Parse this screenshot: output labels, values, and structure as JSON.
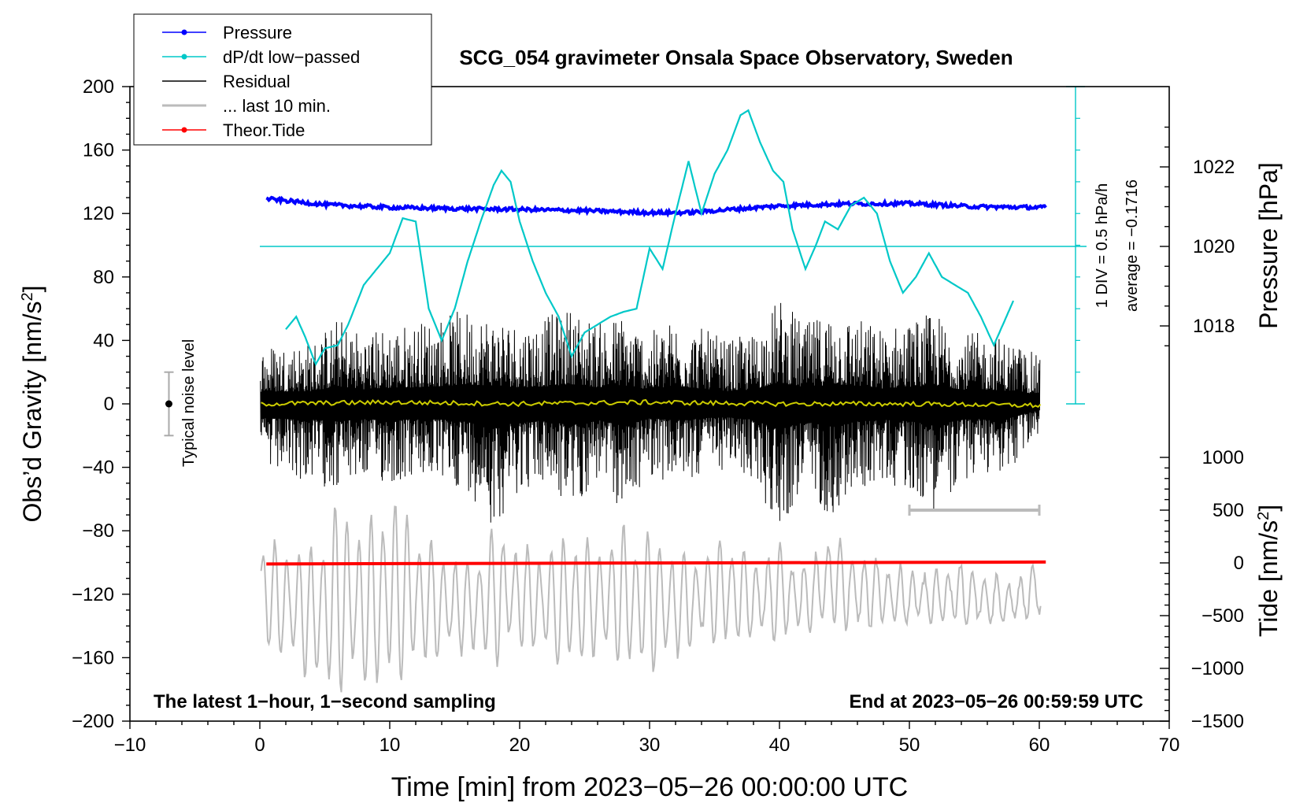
{
  "chart_data": {
    "type": "line",
    "title": "SCG_054 gravimeter Onsala Space Observatory, Sweden",
    "xlabel": "Time [min] from 2023−05−26 00:00:00 UTC",
    "xlim": [
      -10,
      70
    ],
    "x_ticks": [
      "−10",
      "0",
      "10",
      "20",
      "30",
      "40",
      "50",
      "60",
      "70"
    ],
    "y_left": {
      "label_main": "Obs’d Gravity [nm/s",
      "label_sup": "2",
      "label_end": "]",
      "ylim": [
        -200,
        200
      ],
      "ticks": [
        "−200",
        "−160",
        "−120",
        "−80",
        "−40",
        "0",
        "40",
        "80",
        "120",
        "160",
        "200"
      ]
    },
    "y_right_pressure": {
      "label": "Pressure [hPa]",
      "ticks": [
        "1018",
        "1020",
        "1022"
      ],
      "tick_values": [
        1018,
        1020,
        1022
      ]
    },
    "y_right_tide": {
      "label_main": "Tide [nm/s",
      "label_sup": "2",
      "label_end": "]",
      "ylim": [
        -1500,
        1000
      ],
      "ticks": [
        "−1500",
        "−1000",
        "−500",
        "0",
        "500",
        "1000"
      ],
      "tick_values": [
        -1500,
        -1000,
        -500,
        0,
        500,
        1000
      ]
    },
    "dpdt_scale": {
      "div_label": "1 DIV = 0.5 hPa/h",
      "average_label": "average = −0.1716"
    },
    "noise_label": "Typical noise level",
    "noise_level": {
      "center": 0,
      "range": [
        -20,
        20
      ],
      "x": -7
    },
    "legend": [
      {
        "name": "Pressure",
        "color": "#0000ff",
        "style": "line-dot"
      },
      {
        "name": "dP/dt low−passed",
        "color": "#00c8c8",
        "style": "line-dot"
      },
      {
        "name": "Residual",
        "color": "#000000",
        "style": "line"
      },
      {
        "name": "... last 10 min.",
        "color": "#bbbbbb",
        "style": "line"
      },
      {
        "name": "Theor.Tide",
        "color": "#ff0000",
        "style": "line-dot"
      }
    ],
    "annotation_left": "The latest 1−hour, 1−second sampling",
    "annotation_right": "End at 2023−05−26 00:59:59 UTC",
    "last10_bar_x": [
      50,
      60
    ],
    "series": [
      {
        "name": "Pressure (hPa)",
        "color": "#0000ff",
        "x": [
          0.5,
          5,
          10,
          15,
          20,
          25,
          30,
          33,
          35,
          40,
          45,
          50,
          55,
          60
        ],
        "values": [
          1021.2,
          1021.05,
          1020.98,
          1020.95,
          1020.93,
          1020.9,
          1020.85,
          1020.85,
          1020.9,
          1021.02,
          1021.07,
          1021.08,
          1021.0,
          1020.98
        ]
      },
      {
        "name": "dP/dt low-passed (gravity-axis units)",
        "color": "#00c8c8",
        "x": [
          2,
          2.8,
          3.5,
          4.3,
          5,
          6,
          6.8,
          8,
          9,
          10,
          11,
          12,
          13,
          14,
          15,
          16,
          17,
          18,
          18.6,
          19.3,
          20,
          21,
          22,
          23,
          24,
          25,
          26,
          27,
          28,
          29,
          30,
          31,
          32,
          33,
          34,
          35,
          36,
          37,
          37.6,
          38.5,
          39.5,
          40.3,
          41,
          42,
          42.8,
          43.5,
          44.5,
          45.5,
          46.5,
          47.5,
          48.5,
          49.5,
          50.5,
          51.5,
          52.5,
          53.5,
          54.5,
          55.5,
          56.5,
          57.2,
          58
        ],
        "values": [
          47,
          55,
          42,
          25,
          35,
          37,
          50,
          75,
          85,
          95,
          117,
          115,
          60,
          40,
          60,
          90,
          115,
          138,
          147,
          140,
          115,
          90,
          70,
          55,
          30,
          45,
          50,
          55,
          58,
          60,
          98,
          85,
          120,
          153,
          120,
          145,
          160,
          182,
          185,
          165,
          147,
          140,
          110,
          85,
          100,
          115,
          110,
          125,
          130,
          120,
          90,
          70,
          80,
          95,
          80,
          75,
          70,
          55,
          37,
          50,
          65
        ]
      },
      {
        "name": "Residual envelope (max)",
        "color": "#000000",
        "x": [
          0,
          4,
          6,
          8,
          10,
          12,
          14,
          16,
          18,
          20,
          22,
          24,
          26,
          28,
          30,
          32,
          34,
          36,
          38,
          40,
          42,
          44,
          46,
          48,
          50,
          52,
          54,
          56,
          58,
          60
        ],
        "values": [
          38,
          40,
          55,
          46,
          50,
          52,
          56,
          60,
          58,
          52,
          55,
          62,
          52,
          58,
          45,
          55,
          48,
          40,
          45,
          68,
          50,
          62,
          55,
          48,
          54,
          58,
          45,
          45,
          40,
          30
        ]
      },
      {
        "name": "Residual envelope (min)",
        "color": "#000000",
        "x": [
          0,
          4,
          6,
          8,
          10,
          12,
          14,
          16,
          18,
          20,
          22,
          24,
          26,
          28,
          30,
          32,
          34,
          36,
          38,
          40,
          42,
          44,
          46,
          48,
          50,
          52,
          54,
          56,
          58,
          60
        ],
        "values": [
          -45,
          -50,
          -55,
          -48,
          -52,
          -48,
          -50,
          -55,
          -78,
          -55,
          -52,
          -68,
          -50,
          -70,
          -45,
          -52,
          -45,
          -42,
          -50,
          -80,
          -55,
          -72,
          -55,
          -50,
          -55,
          -68,
          -50,
          -45,
          -42,
          -18
        ]
      },
      {
        "name": "Residual smoothed",
        "color": "#cccc00",
        "x": [
          0,
          10,
          20,
          30,
          40,
          50,
          60
        ],
        "values": [
          0,
          1,
          0,
          1,
          0,
          0,
          -1
        ]
      },
      {
        "name": "Last 10 min envelope (max)",
        "color": "#bbbbbb",
        "x": [
          0,
          4,
          6,
          8,
          10,
          12,
          14,
          16,
          18,
          20,
          22,
          24,
          26,
          28,
          30,
          32,
          34,
          36,
          38,
          40,
          42,
          44,
          46,
          48,
          50,
          52,
          54,
          56,
          58,
          60
        ],
        "values": [
          -85,
          -90,
          -58,
          -78,
          -55,
          -75,
          -92,
          -100,
          -78,
          -88,
          -92,
          -78,
          -90,
          -75,
          -80,
          -90,
          -95,
          -80,
          -98,
          -88,
          -100,
          -80,
          -95,
          -98,
          -105,
          -105,
          -100,
          -108,
          -110,
          -100
        ]
      },
      {
        "name": "Last 10 min envelope (min)",
        "color": "#bbbbbb",
        "x": [
          0,
          4,
          6,
          8,
          10,
          12,
          14,
          16,
          18,
          20,
          22,
          24,
          26,
          28,
          30,
          32,
          34,
          36,
          38,
          40,
          42,
          44,
          46,
          48,
          50,
          52,
          54,
          56,
          58,
          60
        ],
        "values": [
          -153,
          -175,
          -185,
          -180,
          -180,
          -170,
          -160,
          -158,
          -165,
          -155,
          -160,
          -170,
          -160,
          -168,
          -170,
          -162,
          -150,
          -155,
          -150,
          -150,
          -145,
          -140,
          -145,
          -140,
          -140,
          -140,
          -140,
          -140,
          -140,
          -135
        ]
      },
      {
        "name": "Theor.Tide (nm/s2)",
        "color": "#ff0000",
        "x": [
          0.5,
          60.5
        ],
        "values": [
          -10,
          8
        ]
      }
    ]
  }
}
